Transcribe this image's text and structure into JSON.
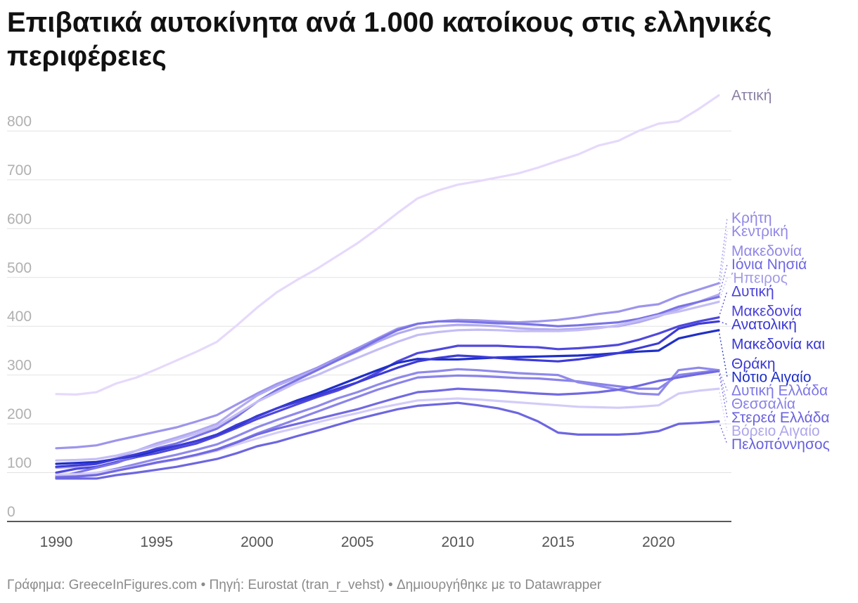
{
  "title": "Επιβατικά αυτοκίνητα ανά 1.000 κατοίκους στις ελληνικές περιφέρειες",
  "footer": "Γράφημα: GreeceInFigures.com • Πηγή: Eurostat (tran_r_vehst) • Δημιουργήθηκε με το Datawrapper",
  "chart_data": {
    "type": "line",
    "title": "Επιβατικά αυτοκίνητα ανά 1.000 κατοίκους στις ελληνικές περιφέρειες",
    "xlabel": "",
    "ylabel": "",
    "xlim": [
      1990,
      2023
    ],
    "ylim": [
      0,
      850
    ],
    "grid": true,
    "x_ticks": [
      "1990",
      "1995",
      "2000",
      "2005",
      "2010",
      "2015",
      "2020"
    ],
    "y_ticks": [
      "0",
      "100",
      "200",
      "300",
      "400",
      "500",
      "600",
      "700",
      "800"
    ],
    "x": [
      1990,
      1991,
      1992,
      1993,
      1994,
      1995,
      1996,
      1997,
      1998,
      1999,
      2000,
      2001,
      2002,
      2003,
      2004,
      2005,
      2006,
      2007,
      2008,
      2009,
      2010,
      2011,
      2012,
      2013,
      2014,
      2015,
      2016,
      2017,
      2018,
      2019,
      2020,
      2021,
      2022,
      2023
    ],
    "series": [
      {
        "name": "Αττική",
        "label_lines": [
          "Αττική"
        ],
        "color": "#e6d9fb",
        "label_color": "#8c7fa3",
        "values": [
          261,
          260,
          265,
          283,
          295,
          312,
          330,
          348,
          368,
          402,
          438,
          470,
          495,
          518,
          544,
          570,
          600,
          632,
          662,
          678,
          690,
          697,
          705,
          713,
          725,
          739,
          752,
          770,
          780,
          800,
          815,
          820,
          845,
          873
        ]
      },
      {
        "name": "Κρήτη",
        "label_lines": [
          "Κρήτη"
        ],
        "color": "#9d95ec",
        "label_color": "#8f86e6",
        "values": [
          150,
          152,
          156,
          166,
          175,
          184,
          193,
          205,
          218,
          240,
          262,
          282,
          298,
          315,
          335,
          355,
          375,
          395,
          405,
          410,
          413,
          412,
          410,
          408,
          410,
          413,
          418,
          425,
          430,
          440,
          445,
          462,
          475,
          488
        ]
      },
      {
        "name": "Κεντρική Μακεδονία",
        "label_lines": [
          "Κεντρική",
          "Μακεδονία"
        ],
        "color": "#b2aaf0",
        "label_color": "#9188e6",
        "values": [
          110,
          112,
          118,
          130,
          145,
          160,
          172,
          185,
          200,
          230,
          258,
          278,
          295,
          312,
          330,
          348,
          368,
          385,
          397,
          400,
          403,
          402,
          400,
          396,
          394,
          393,
          395,
          398,
          400,
          408,
          420,
          435,
          450,
          465
        ]
      },
      {
        "name": "Δυτική Μακεδονία",
        "label_lines": [
          "Δυτική",
          "Μακεδονία"
        ],
        "color": "#4f48dc",
        "label_color": "#4a42d8",
        "values": [
          100,
          108,
          112,
          122,
          132,
          140,
          150,
          160,
          175,
          192,
          210,
          225,
          240,
          255,
          268,
          285,
          305,
          328,
          345,
          352,
          360,
          360,
          360,
          358,
          357,
          353,
          355,
          358,
          362,
          372,
          385,
          400,
          410,
          418
        ]
      },
      {
        "name": "Ιόνια Νησιά",
        "label_lines": [
          "Ιόνια Νησιά"
        ],
        "color": "#7a73e6",
        "label_color": "#6e67e2",
        "values": [
          90,
          100,
          110,
          120,
          135,
          150,
          160,
          175,
          190,
          215,
          245,
          270,
          290,
          310,
          330,
          350,
          372,
          392,
          405,
          410,
          410,
          408,
          406,
          405,
          403,
          400,
          402,
          405,
          408,
          415,
          425,
          440,
          450,
          460
        ]
      },
      {
        "name": "Ήπειρος",
        "label_lines": [
          "Ήπειρος"
        ],
        "color": "#c4bdf5",
        "label_color": "#a39be8",
        "values": [
          125,
          126,
          128,
          135,
          145,
          156,
          168,
          180,
          195,
          220,
          245,
          265,
          285,
          300,
          318,
          335,
          352,
          368,
          382,
          388,
          392,
          393,
          392,
          390,
          390,
          390,
          392,
          396,
          402,
          412,
          422,
          430,
          440,
          450
        ]
      },
      {
        "name": "Νότιο Αιγαίο",
        "label_lines": [
          "Νότιο Αιγαίο"
        ],
        "color": "#1f2fc7",
        "label_color": "#1f2fc7",
        "values": [
          118,
          120,
          122,
          128,
          135,
          145,
          155,
          165,
          178,
          196,
          216,
          232,
          248,
          262,
          278,
          294,
          310,
          325,
          333,
          332,
          332,
          334,
          336,
          337,
          338,
          339,
          340,
          342,
          345,
          348,
          350,
          375,
          384,
          392
        ]
      },
      {
        "name": "Ανατολική Μακεδονία και Θράκη",
        "label_lines": [
          "Ανατολική",
          "Μακεδονία και",
          "Θράκη"
        ],
        "color": "#3d3bd6",
        "label_color": "#3937d4",
        "values": [
          112,
          115,
          118,
          128,
          138,
          148,
          155,
          165,
          178,
          198,
          215,
          232,
          245,
          258,
          272,
          285,
          300,
          315,
          328,
          335,
          340,
          338,
          335,
          332,
          330,
          328,
          332,
          338,
          345,
          355,
          365,
          395,
          405,
          410
        ]
      },
      {
        "name": "Δυτική Ελλάδα",
        "label_lines": [
          "Δυτική Ελλάδα"
        ],
        "color": "#8a83ea",
        "label_color": "#7e77e6",
        "values": [
          92,
          93,
          97,
          105,
          112,
          120,
          127,
          137,
          148,
          163,
          180,
          195,
          210,
          225,
          240,
          255,
          270,
          283,
          295,
          297,
          299,
          298,
          296,
          294,
          293,
          290,
          287,
          282,
          277,
          272,
          272,
          300,
          305,
          310
        ]
      },
      {
        "name": "Θεσσαλία",
        "label_lines": [
          "Θεσσαλία"
        ],
        "color": "#8f89ea",
        "label_color": "#8881e6",
        "values": [
          94,
          95,
          99,
          108,
          118,
          128,
          137,
          147,
          158,
          175,
          193,
          208,
          222,
          236,
          252,
          265,
          280,
          294,
          305,
          308,
          312,
          310,
          307,
          304,
          302,
          300,
          285,
          278,
          270,
          262,
          260,
          310,
          315,
          310
        ]
      },
      {
        "name": "Βόρειο Αιγαίο",
        "label_lines": [
          "Βόρειο Αιγαίο"
        ],
        "color": "#d3ccf8",
        "label_color": "#aea6ec",
        "values": [
          96,
          97,
          100,
          106,
          113,
          120,
          127,
          135,
          145,
          158,
          170,
          182,
          192,
          203,
          213,
          222,
          232,
          240,
          248,
          250,
          252,
          250,
          247,
          244,
          241,
          238,
          235,
          234,
          233,
          235,
          238,
          262,
          268,
          272
        ]
      },
      {
        "name": "Στερεά Ελλάδα",
        "label_lines": [
          "Στερεά Ελλάδα"
        ],
        "color": "#7169e2",
        "label_color": "#6a62de",
        "values": [
          90,
          92,
          95,
          104,
          112,
          121,
          128,
          137,
          147,
          162,
          178,
          190,
          200,
          210,
          220,
          230,
          242,
          254,
          265,
          268,
          272,
          270,
          268,
          265,
          262,
          260,
          262,
          265,
          270,
          278,
          288,
          295,
          302,
          308
        ]
      },
      {
        "name": "Πελοπόννησος",
        "label_lines": [
          "Πελοπόννησος"
        ],
        "color": "#6d66e0",
        "label_color": "#6761dd",
        "values": [
          88,
          88,
          88,
          95,
          100,
          106,
          112,
          120,
          128,
          140,
          154,
          163,
          175,
          186,
          198,
          210,
          220,
          230,
          237,
          240,
          243,
          238,
          232,
          222,
          205,
          182,
          178,
          178,
          178,
          180,
          185,
          200,
          202,
          205
        ]
      }
    ]
  }
}
